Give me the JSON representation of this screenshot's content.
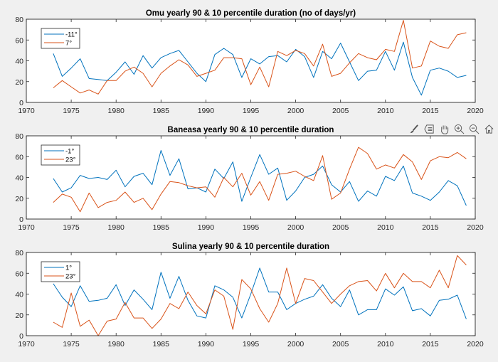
{
  "window": {
    "background": "#f0f0f0"
  },
  "toolbar": {
    "icons": [
      "brush-icon",
      "datatip-icon",
      "pan-icon",
      "zoom-in-icon",
      "zoom-out-icon",
      "restore-view-icon"
    ]
  },
  "colors": {
    "series1": "#0072bd",
    "series2": "#d95319",
    "axis": "#262626",
    "grid_text": "#262626"
  },
  "chart_data": [
    {
      "type": "line",
      "title": "Omu yearly 90 & 10 percentile duration (no of days/yr)",
      "xlabel": "",
      "ylabel": "",
      "xlim": [
        1970,
        2020
      ],
      "ylim": [
        0,
        80
      ],
      "xticks": [
        1970,
        1975,
        1980,
        1985,
        1990,
        1995,
        2000,
        2005,
        2010,
        2015,
        2020
      ],
      "yticks": [
        0,
        20,
        40,
        60,
        80
      ],
      "legend_position": "top-left",
      "x": [
        1973,
        1974,
        1975,
        1976,
        1977,
        1978,
        1979,
        1980,
        1981,
        1982,
        1983,
        1984,
        1985,
        1986,
        1987,
        1988,
        1989,
        1990,
        1991,
        1992,
        1993,
        1994,
        1995,
        1996,
        1997,
        1998,
        1999,
        2000,
        2001,
        2002,
        2003,
        2004,
        2005,
        2006,
        2007,
        2008,
        2009,
        2010,
        2011,
        2012,
        2013,
        2014,
        2015,
        2016,
        2017,
        2018,
        2019
      ],
      "series": [
        {
          "name": "-11°",
          "values": [
            47,
            25,
            33,
            42,
            23,
            22,
            21,
            29,
            39,
            27,
            45,
            33,
            43,
            47,
            50,
            39,
            28,
            20,
            46,
            52,
            46,
            24,
            42,
            37,
            44,
            45,
            39,
            51,
            44,
            24,
            49,
            42,
            57,
            39,
            21,
            30,
            31,
            49,
            31,
            58,
            24,
            7,
            31,
            33,
            30,
            24,
            26
          ]
        },
        {
          "name": "7°",
          "values": [
            14,
            21,
            15,
            9,
            12,
            8,
            21,
            21,
            30,
            34,
            28,
            15,
            28,
            35,
            41,
            36,
            25,
            28,
            31,
            43,
            43,
            42,
            17,
            34,
            15,
            49,
            45,
            50,
            47,
            35,
            56,
            25,
            28,
            38,
            47,
            43,
            41,
            51,
            49,
            79,
            33,
            35,
            59,
            54,
            52,
            65,
            67
          ]
        }
      ]
    },
    {
      "type": "line",
      "title": "Baneasa yearly 90 & 10 percentile duration",
      "xlabel": "",
      "ylabel": "",
      "xlim": [
        1970,
        2020
      ],
      "ylim": [
        0,
        80
      ],
      "xticks": [
        1970,
        1975,
        1980,
        1985,
        1990,
        1995,
        2000,
        2005,
        2010,
        2015,
        2020
      ],
      "yticks": [
        0,
        20,
        40,
        60,
        80
      ],
      "legend_position": "top-left",
      "x": [
        1973,
        1974,
        1975,
        1976,
        1977,
        1978,
        1979,
        1980,
        1981,
        1982,
        1983,
        1984,
        1985,
        1986,
        1987,
        1988,
        1989,
        1990,
        1991,
        1992,
        1993,
        1994,
        1995,
        1996,
        1997,
        1998,
        1999,
        2000,
        2001,
        2002,
        2003,
        2004,
        2005,
        2006,
        2007,
        2008,
        2009,
        2010,
        2011,
        2012,
        2013,
        2014,
        2015,
        2016,
        2017,
        2018,
        2019
      ],
      "series": [
        {
          "name": "-1°",
          "values": [
            39,
            26,
            30,
            42,
            39,
            40,
            38,
            47,
            31,
            41,
            44,
            33,
            66,
            42,
            58,
            29,
            30,
            26,
            48,
            39,
            55,
            17,
            40,
            62,
            43,
            49,
            18,
            27,
            40,
            43,
            51,
            33,
            26,
            36,
            17,
            27,
            22,
            41,
            37,
            51,
            25,
            22,
            18,
            26,
            37,
            32,
            13
          ]
        },
        {
          "name": "23°",
          "values": [
            16,
            24,
            21,
            7,
            25,
            11,
            16,
            18,
            26,
            16,
            20,
            9,
            24,
            36,
            35,
            32,
            30,
            31,
            21,
            40,
            31,
            44,
            23,
            36,
            18,
            43,
            44,
            46,
            41,
            37,
            61,
            19,
            25,
            48,
            69,
            63,
            48,
            52,
            49,
            62,
            55,
            38,
            56,
            60,
            59,
            64,
            58
          ]
        }
      ]
    },
    {
      "type": "line",
      "title": "Sulina yearly 90 & 10 percentile duration",
      "xlabel": "",
      "ylabel": "",
      "xlim": [
        1970,
        2020
      ],
      "ylim": [
        0,
        80
      ],
      "xticks": [
        1970,
        1975,
        1980,
        1985,
        1990,
        1995,
        2000,
        2005,
        2010,
        2015,
        2020
      ],
      "yticks": [
        0,
        20,
        40,
        60,
        80
      ],
      "legend_position": "top-left",
      "x": [
        1973,
        1974,
        1975,
        1976,
        1977,
        1978,
        1979,
        1980,
        1981,
        1982,
        1983,
        1984,
        1985,
        1986,
        1987,
        1988,
        1989,
        1990,
        1991,
        1992,
        1993,
        1994,
        1995,
        1996,
        1997,
        1998,
        1999,
        2000,
        2001,
        2002,
        2003,
        2004,
        2005,
        2006,
        2007,
        2008,
        2009,
        2010,
        2011,
        2012,
        2013,
        2014,
        2015,
        2016,
        2017,
        2018,
        2019
      ],
      "series": [
        {
          "name": "1°",
          "values": [
            50,
            37,
            28,
            48,
            33,
            34,
            36,
            49,
            29,
            44,
            35,
            25,
            61,
            36,
            57,
            34,
            19,
            17,
            48,
            44,
            37,
            17,
            40,
            65,
            42,
            42,
            25,
            31,
            35,
            38,
            49,
            36,
            28,
            44,
            20,
            25,
            25,
            45,
            39,
            47,
            24,
            26,
            19,
            34,
            35,
            39,
            16
          ]
        },
        {
          "name": "23°",
          "values": [
            13,
            8,
            41,
            9,
            15,
            0,
            14,
            16,
            32,
            17,
            17,
            7,
            16,
            31,
            26,
            42,
            29,
            21,
            44,
            38,
            6,
            54,
            45,
            26,
            13,
            31,
            65,
            31,
            55,
            53,
            42,
            31,
            40,
            48,
            52,
            53,
            43,
            60,
            46,
            60,
            52,
            52,
            46,
            63,
            46,
            77,
            68
          ]
        }
      ]
    }
  ]
}
